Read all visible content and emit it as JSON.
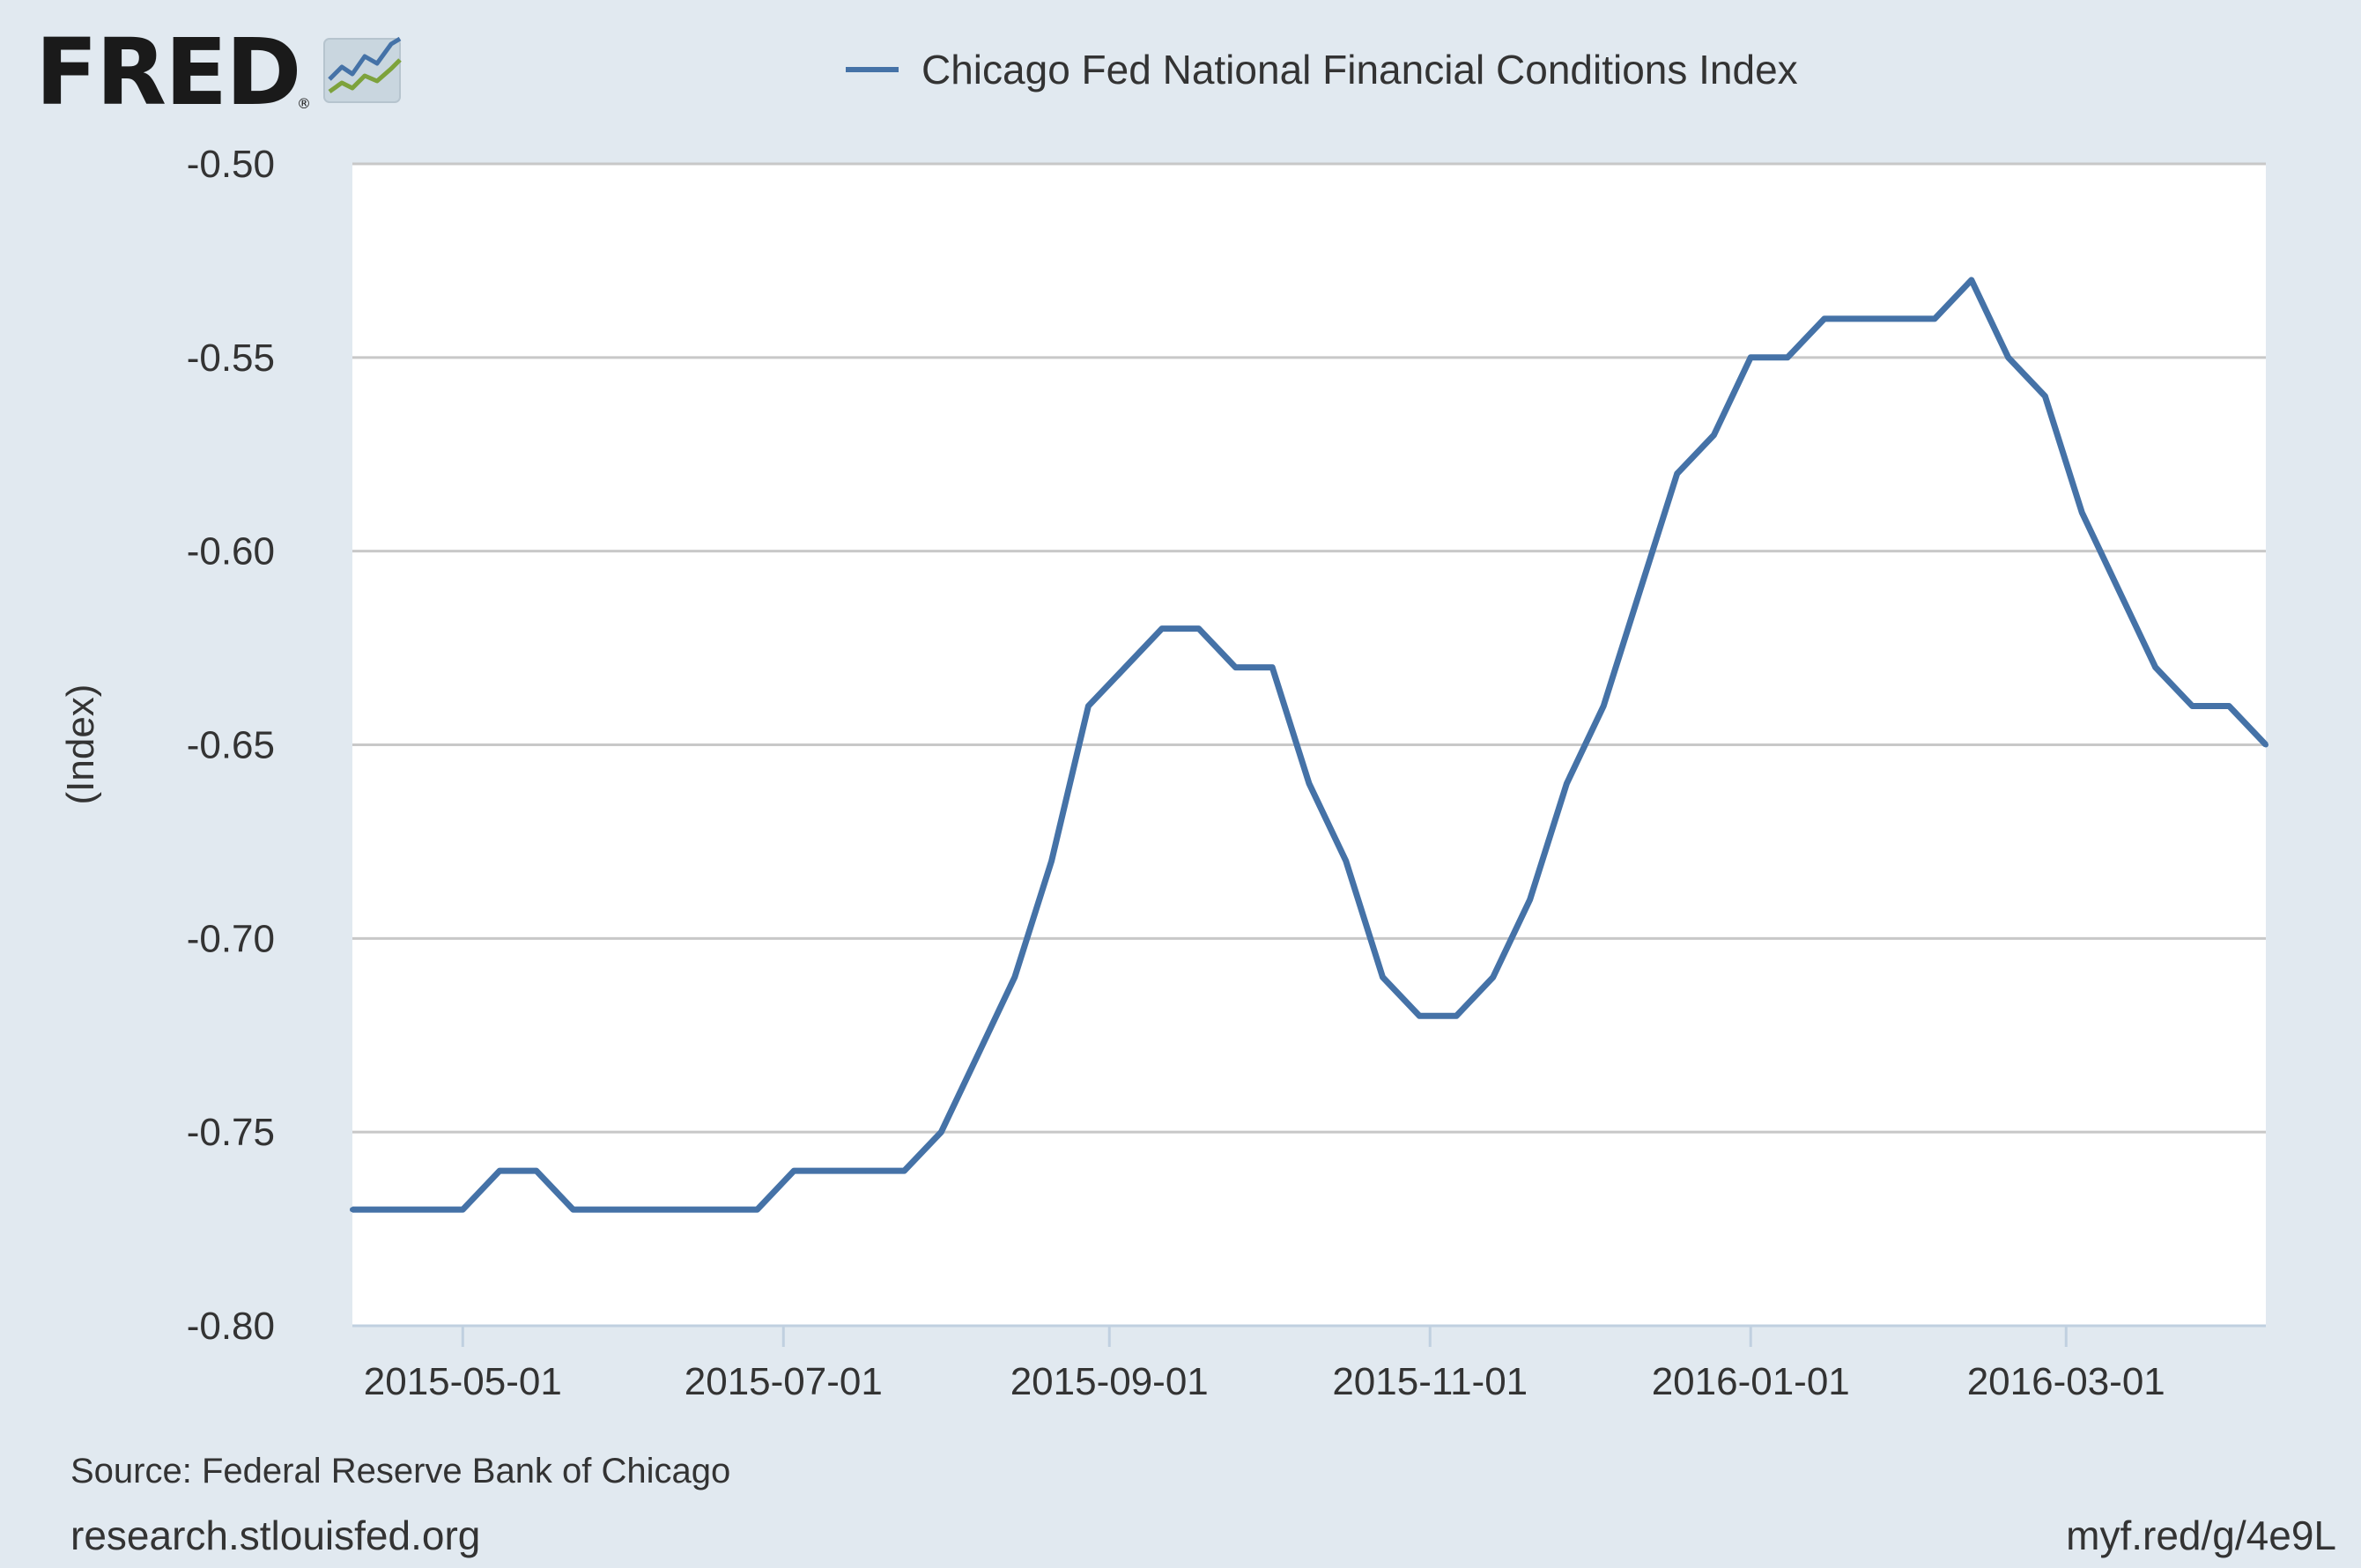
{
  "brand": {
    "logo_text": "FRED",
    "reg_mark": "®"
  },
  "colors": {
    "background": "#e1e9f0",
    "plot_background": "#ffffff",
    "series_line": "#4572a7",
    "gridline": "#c8c8c8",
    "logo_line_blue": "#4572a7",
    "logo_line_green": "#7da23c"
  },
  "footer": {
    "source": "Source: Federal Reserve Bank of Chicago",
    "site": "research.stlouisfed.org",
    "short_link": "myf.red/g/4e9L"
  },
  "chart_data": {
    "type": "line",
    "ylabel": "(Index)",
    "xlabel": "",
    "ylim": [
      -0.8,
      -0.5
    ],
    "y_ticks": [
      "-0.50",
      "-0.55",
      "-0.60",
      "-0.65",
      "-0.70",
      "-0.75",
      "-0.80"
    ],
    "x_ticks": [
      "2015-05-01",
      "2015-07-01",
      "2015-09-01",
      "2015-11-01",
      "2016-01-01",
      "2016-03-01"
    ],
    "xlim": [
      "2015-04-10",
      "2016-04-08"
    ],
    "grid": true,
    "legend_position": "top-center",
    "series": [
      {
        "name": "Chicago Fed National Financial Conditions Index",
        "x": [
          "2015-04-10",
          "2015-04-17",
          "2015-04-24",
          "2015-05-01",
          "2015-05-08",
          "2015-05-15",
          "2015-05-22",
          "2015-05-29",
          "2015-06-05",
          "2015-06-12",
          "2015-06-19",
          "2015-06-26",
          "2015-07-03",
          "2015-07-10",
          "2015-07-17",
          "2015-07-24",
          "2015-07-31",
          "2015-08-07",
          "2015-08-14",
          "2015-08-21",
          "2015-08-28",
          "2015-09-04",
          "2015-09-11",
          "2015-09-18",
          "2015-09-25",
          "2015-10-02",
          "2015-10-09",
          "2015-10-16",
          "2015-10-23",
          "2015-10-30",
          "2015-11-06",
          "2015-11-13",
          "2015-11-20",
          "2015-11-27",
          "2015-12-04",
          "2015-12-11",
          "2015-12-18",
          "2015-12-25",
          "2016-01-01",
          "2016-01-08",
          "2016-01-15",
          "2016-01-22",
          "2016-01-29",
          "2016-02-05",
          "2016-02-12",
          "2016-02-19",
          "2016-02-26",
          "2016-03-04",
          "2016-03-11",
          "2016-03-18",
          "2016-03-25",
          "2016-04-01",
          "2016-04-08"
        ],
        "values": [
          -0.77,
          -0.77,
          -0.77,
          -0.77,
          -0.76,
          -0.76,
          -0.77,
          -0.77,
          -0.77,
          -0.77,
          -0.77,
          -0.77,
          -0.76,
          -0.76,
          -0.76,
          -0.76,
          -0.75,
          -0.73,
          -0.71,
          -0.68,
          -0.64,
          -0.63,
          -0.62,
          -0.62,
          -0.63,
          -0.63,
          -0.66,
          -0.68,
          -0.71,
          -0.72,
          -0.72,
          -0.71,
          -0.69,
          -0.66,
          -0.64,
          -0.61,
          -0.58,
          -0.57,
          -0.55,
          -0.55,
          -0.54,
          -0.54,
          -0.54,
          -0.54,
          -0.53,
          -0.55,
          -0.56,
          -0.59,
          -0.61,
          -0.63,
          -0.64,
          -0.64,
          -0.65
        ]
      }
    ]
  }
}
